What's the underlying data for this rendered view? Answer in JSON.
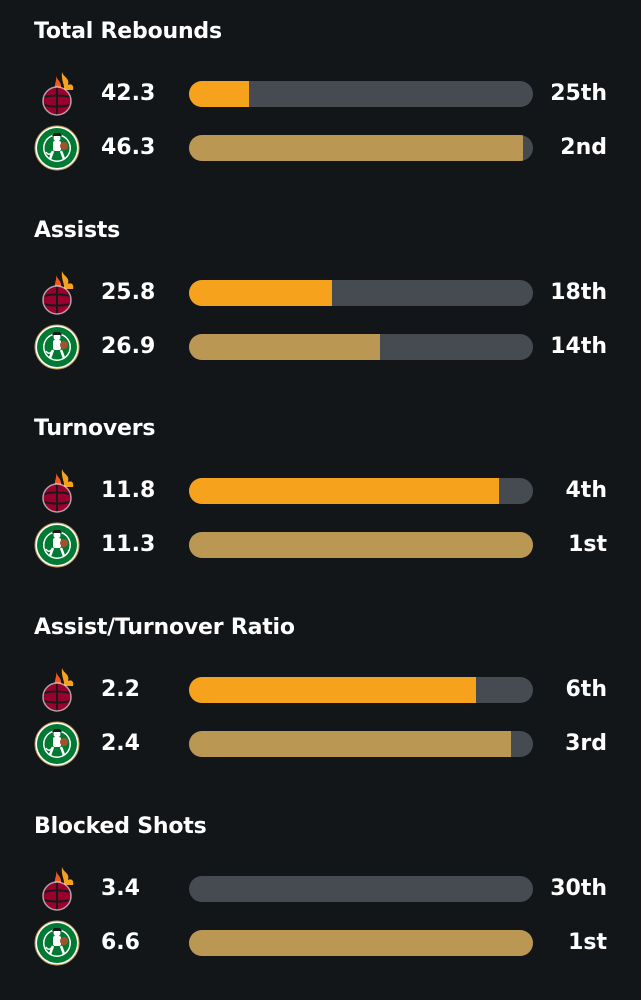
{
  "colors": {
    "background": "#131619",
    "track": "#464b52",
    "heat_bar": "#f7a21d",
    "celtics_bar": "#bb9754",
    "heat_red": "#98002e",
    "celtics_green": "#007a33"
  },
  "teams": {
    "heat": {
      "logo_icon": "miami-heat-logo-icon"
    },
    "celtics": {
      "logo_icon": "boston-celtics-logo-icon"
    }
  },
  "sections": [
    {
      "title": "Total Rebounds",
      "heat": {
        "value": "42.3",
        "rank": "25th",
        "bar_fraction": 0.175
      },
      "celtics": {
        "value": "46.3",
        "rank": "2nd",
        "bar_fraction": 0.97
      }
    },
    {
      "title": "Assists",
      "heat": {
        "value": "25.8",
        "rank": "18th",
        "bar_fraction": 0.415
      },
      "celtics": {
        "value": "26.9",
        "rank": "14th",
        "bar_fraction": 0.555
      }
    },
    {
      "title": "Turnovers",
      "heat": {
        "value": "11.8",
        "rank": "4th",
        "bar_fraction": 0.9
      },
      "celtics": {
        "value": "11.3",
        "rank": "1st",
        "bar_fraction": 1.0
      }
    },
    {
      "title": "Assist/Turnover Ratio",
      "heat": {
        "value": "2.2",
        "rank": "6th",
        "bar_fraction": 0.835
      },
      "celtics": {
        "value": "2.4",
        "rank": "3rd",
        "bar_fraction": 0.935
      }
    },
    {
      "title": "Blocked Shots",
      "heat": {
        "value": "3.4",
        "rank": "30th",
        "bar_fraction": 0.0
      },
      "celtics": {
        "value": "6.6",
        "rank": "1st",
        "bar_fraction": 1.0
      }
    }
  ]
}
